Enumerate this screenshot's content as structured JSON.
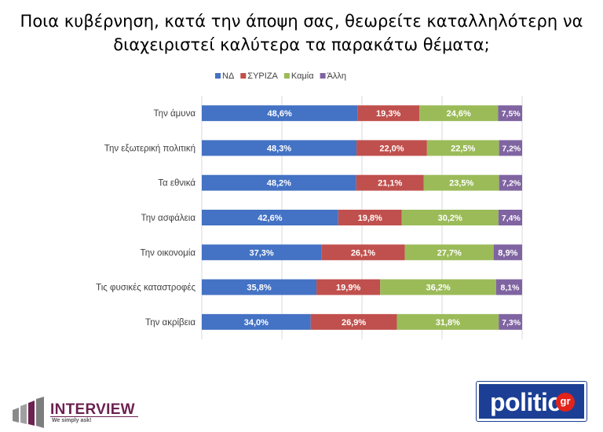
{
  "title": {
    "line1": "Ποια κυβέρνηση, κατά την άποψη σας, θεωρείτε καταλληλότερη να",
    "line2": "διαχειριστεί καλύτερα τα παρακάτω θέματα;"
  },
  "chart_data": {
    "type": "bar",
    "orientation": "horizontal",
    "stacked": true,
    "categories": [
      "Την άμυνα",
      "Την εξωτερική πολιτική",
      "Τα εθνικά",
      "Την ασφάλεια",
      "Την οικονομία",
      "Τις φυσικές καταστροφές",
      "Την ακρίβεια"
    ],
    "series": [
      {
        "name": "ΝΔ",
        "color": "#4472c4",
        "values": [
          48.6,
          48.3,
          48.2,
          42.6,
          37.3,
          35.8,
          34.0
        ],
        "labels": [
          "48,6%",
          "48,3%",
          "48,2%",
          "42,6%",
          "37,3%",
          "35,8%",
          "34,0%"
        ]
      },
      {
        "name": "ΣΥΡΙΖΑ",
        "color": "#c0504d",
        "values": [
          19.3,
          22.0,
          21.1,
          19.8,
          26.1,
          19.9,
          26.9
        ],
        "labels": [
          "19,3%",
          "22,0%",
          "21,1%",
          "19,8%",
          "26,1%",
          "19,9%",
          "26,9%"
        ]
      },
      {
        "name": "Καμία",
        "color": "#9bbb59",
        "values": [
          24.6,
          22.5,
          23.5,
          30.2,
          27.7,
          36.2,
          31.8
        ],
        "labels": [
          "24,6%",
          "22,5%",
          "23,5%",
          "30,2%",
          "27,7%",
          "36,2%",
          "31,8%"
        ]
      },
      {
        "name": "Άλλη",
        "color": "#8064a2",
        "values": [
          7.5,
          7.2,
          7.2,
          7.4,
          8.9,
          8.1,
          7.3
        ],
        "labels": [
          "7,5%",
          "7,2%",
          "7,2%",
          "7,4%",
          "8,9%",
          "8,1%",
          "7,3%"
        ]
      }
    ],
    "xlim": [
      0,
      125
    ],
    "grid": true,
    "legend": "top-center"
  },
  "logos": {
    "interview": {
      "name": "INTERVIEW",
      "tagline": "We simply ask!"
    },
    "politic": {
      "name": "politic",
      "suffix": "gr"
    }
  }
}
